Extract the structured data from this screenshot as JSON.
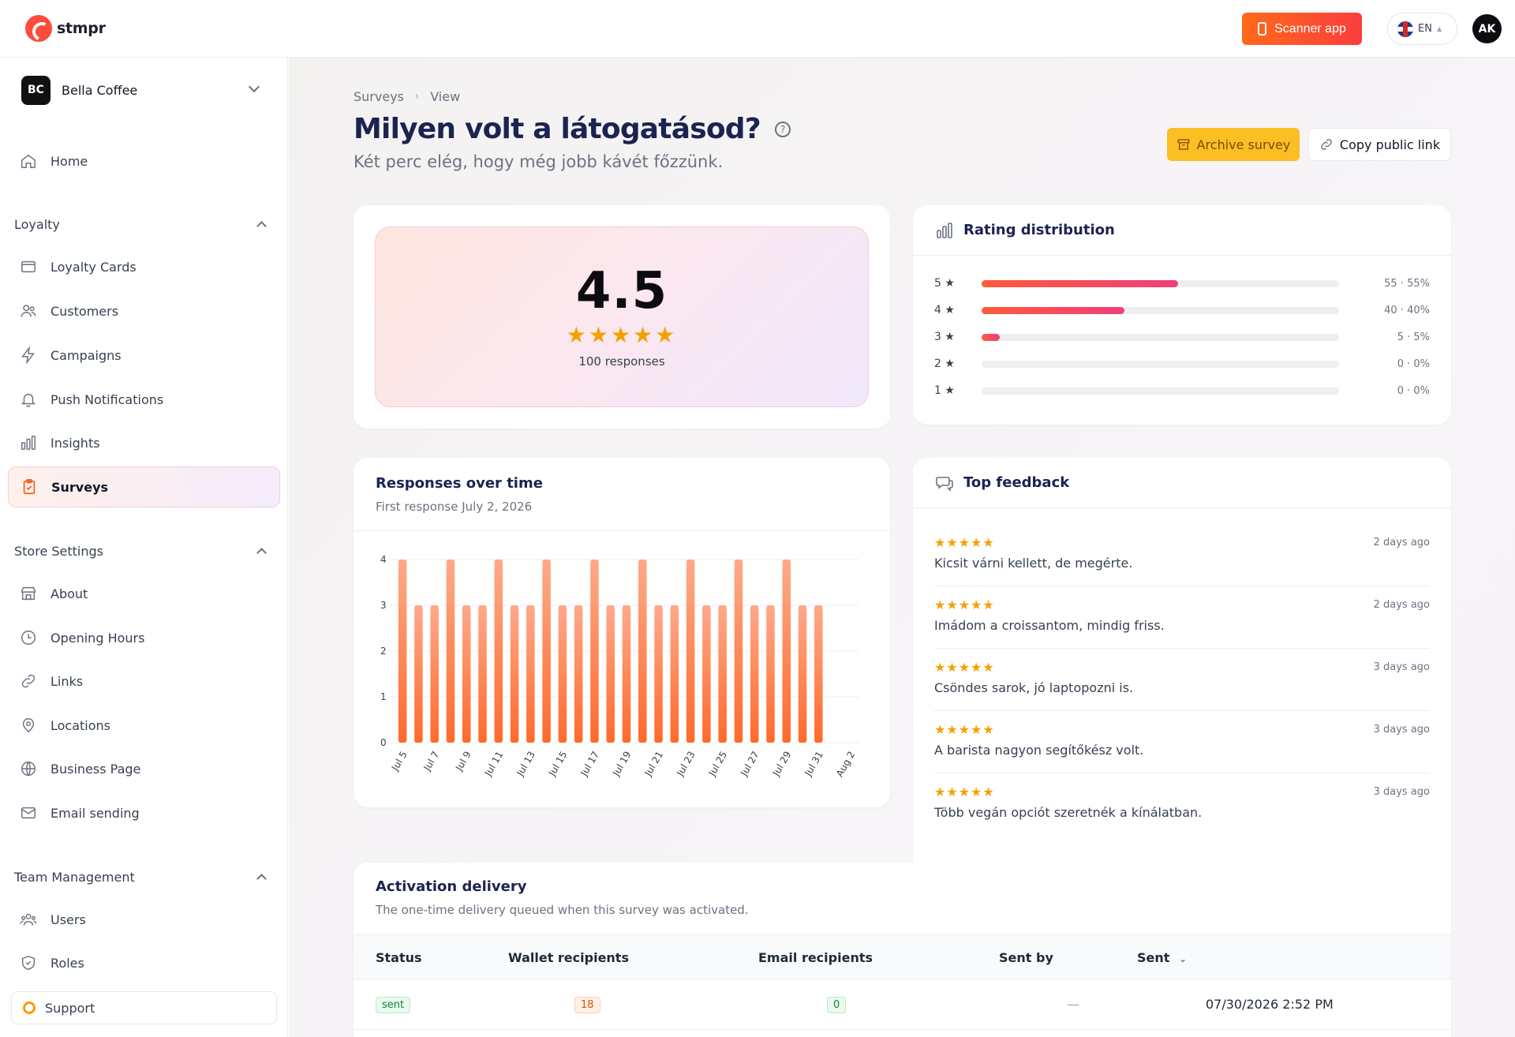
{
  "app": {
    "logo_text": "stmpr"
  },
  "topbar": {
    "scanner_label": "Scanner app",
    "lang": "EN",
    "avatar_initials": "AK"
  },
  "sidebar": {
    "store": {
      "initials": "BC",
      "name": "Bella Coffee"
    },
    "home": "Home",
    "sections": [
      {
        "title": "Loyalty",
        "items": [
          "Loyalty Cards",
          "Customers",
          "Campaigns",
          "Push Notifications",
          "Insights",
          "Surveys"
        ]
      },
      {
        "title": "Store Settings",
        "items": [
          "About",
          "Opening Hours",
          "Links",
          "Locations",
          "Business Page",
          "Email sending"
        ]
      },
      {
        "title": "Team Management",
        "items": [
          "Users",
          "Roles"
        ]
      }
    ],
    "active_item": "Surveys",
    "support": "Support"
  },
  "breadcrumb": [
    "Surveys",
    "View"
  ],
  "page": {
    "title": "Milyen volt a látogatásod?",
    "subtitle": "Két perc elég, hogy még jobb kávét főzzünk.",
    "archive_label": "Archive survey",
    "copy_label": "Copy public link"
  },
  "score": {
    "value": "4.5",
    "stars": "★★★★★",
    "responses": "100 responses"
  },
  "distribution": {
    "title": "Rating distribution",
    "rows": [
      {
        "label": "5 ★",
        "value": "55 · 55%",
        "fraction": 0.55
      },
      {
        "label": "4 ★",
        "value": "40 · 40%",
        "fraction": 0.4
      },
      {
        "label": "3 ★",
        "value": "5 · 5%",
        "fraction": 0.05
      },
      {
        "label": "2 ★",
        "value": "0 · 0%",
        "fraction": 0
      },
      {
        "label": "1 ★",
        "value": "0 · 0%",
        "fraction": 0
      }
    ]
  },
  "responses": {
    "title": "Responses over time",
    "subtitle": "First response July 2, 2026"
  },
  "chart_data": {
    "type": "bar",
    "x": [
      "Jul 5",
      "Jul 6",
      "Jul 7",
      "Jul 8",
      "Jul 9",
      "Jul 10",
      "Jul 11",
      "Jul 12",
      "Jul 13",
      "Jul 14",
      "Jul 15",
      "Jul 16",
      "Jul 17",
      "Jul 18",
      "Jul 19",
      "Jul 20",
      "Jul 21",
      "Jul 22",
      "Jul 23",
      "Jul 24",
      "Jul 25",
      "Jul 26",
      "Jul 27",
      "Jul 28",
      "Jul 29",
      "Jul 30",
      "Jul 31",
      "Aug 1",
      "Aug 2"
    ],
    "values": [
      4,
      3,
      3,
      4,
      3,
      3,
      4,
      3,
      3,
      4,
      3,
      3,
      4,
      3,
      3,
      4,
      3,
      3,
      4,
      3,
      3,
      4,
      3,
      3,
      4,
      3,
      3,
      0,
      0
    ],
    "tick_labels": [
      "Jul 5",
      "Jul 7",
      "Jul 9",
      "Jul 11",
      "Jul 13",
      "Jul 15",
      "Jul 17",
      "Jul 19",
      "Jul 21",
      "Jul 23",
      "Jul 25",
      "Jul 27",
      "Jul 29",
      "Jul 31",
      "Aug 2"
    ],
    "ylim": [
      0,
      4
    ],
    "yticks": [
      "0",
      "1",
      "2",
      "3",
      "4"
    ],
    "grid": true,
    "color": "#ff6a2c"
  },
  "feedback": {
    "title": "Top feedback",
    "items": [
      {
        "stars": "★★★★★",
        "time": "2 days ago",
        "text": "Kicsit várni kellett, de megérte."
      },
      {
        "stars": "★★★★★",
        "time": "2 days ago",
        "text": "Imádom a croissantom, mindig friss."
      },
      {
        "stars": "★★★★★",
        "time": "3 days ago",
        "text": "Csöndes sarok, jó laptopozni is."
      },
      {
        "stars": "★★★★★",
        "time": "3 days ago",
        "text": "A barista nagyon segítőkész volt."
      },
      {
        "stars": "★★★★★",
        "time": "3 days ago",
        "text": "Több vegán opciót szeretnék a kínálatban."
      }
    ]
  },
  "activation": {
    "title": "Activation delivery",
    "subtitle": "The one-time delivery queued when this survey was activated.",
    "columns": [
      "Status",
      "Wallet recipients",
      "Email recipients",
      "Sent by",
      "Sent"
    ],
    "rows": [
      {
        "status": "sent",
        "wallet": "18",
        "email": "0",
        "sent_by": "—",
        "sent": "07/30/2026 2:52 PM"
      }
    ]
  },
  "colors": {
    "accent": "#ff6a1a",
    "brand_navy": "#1b2350",
    "star": "#f5a000",
    "archive": "#fbbf24"
  }
}
